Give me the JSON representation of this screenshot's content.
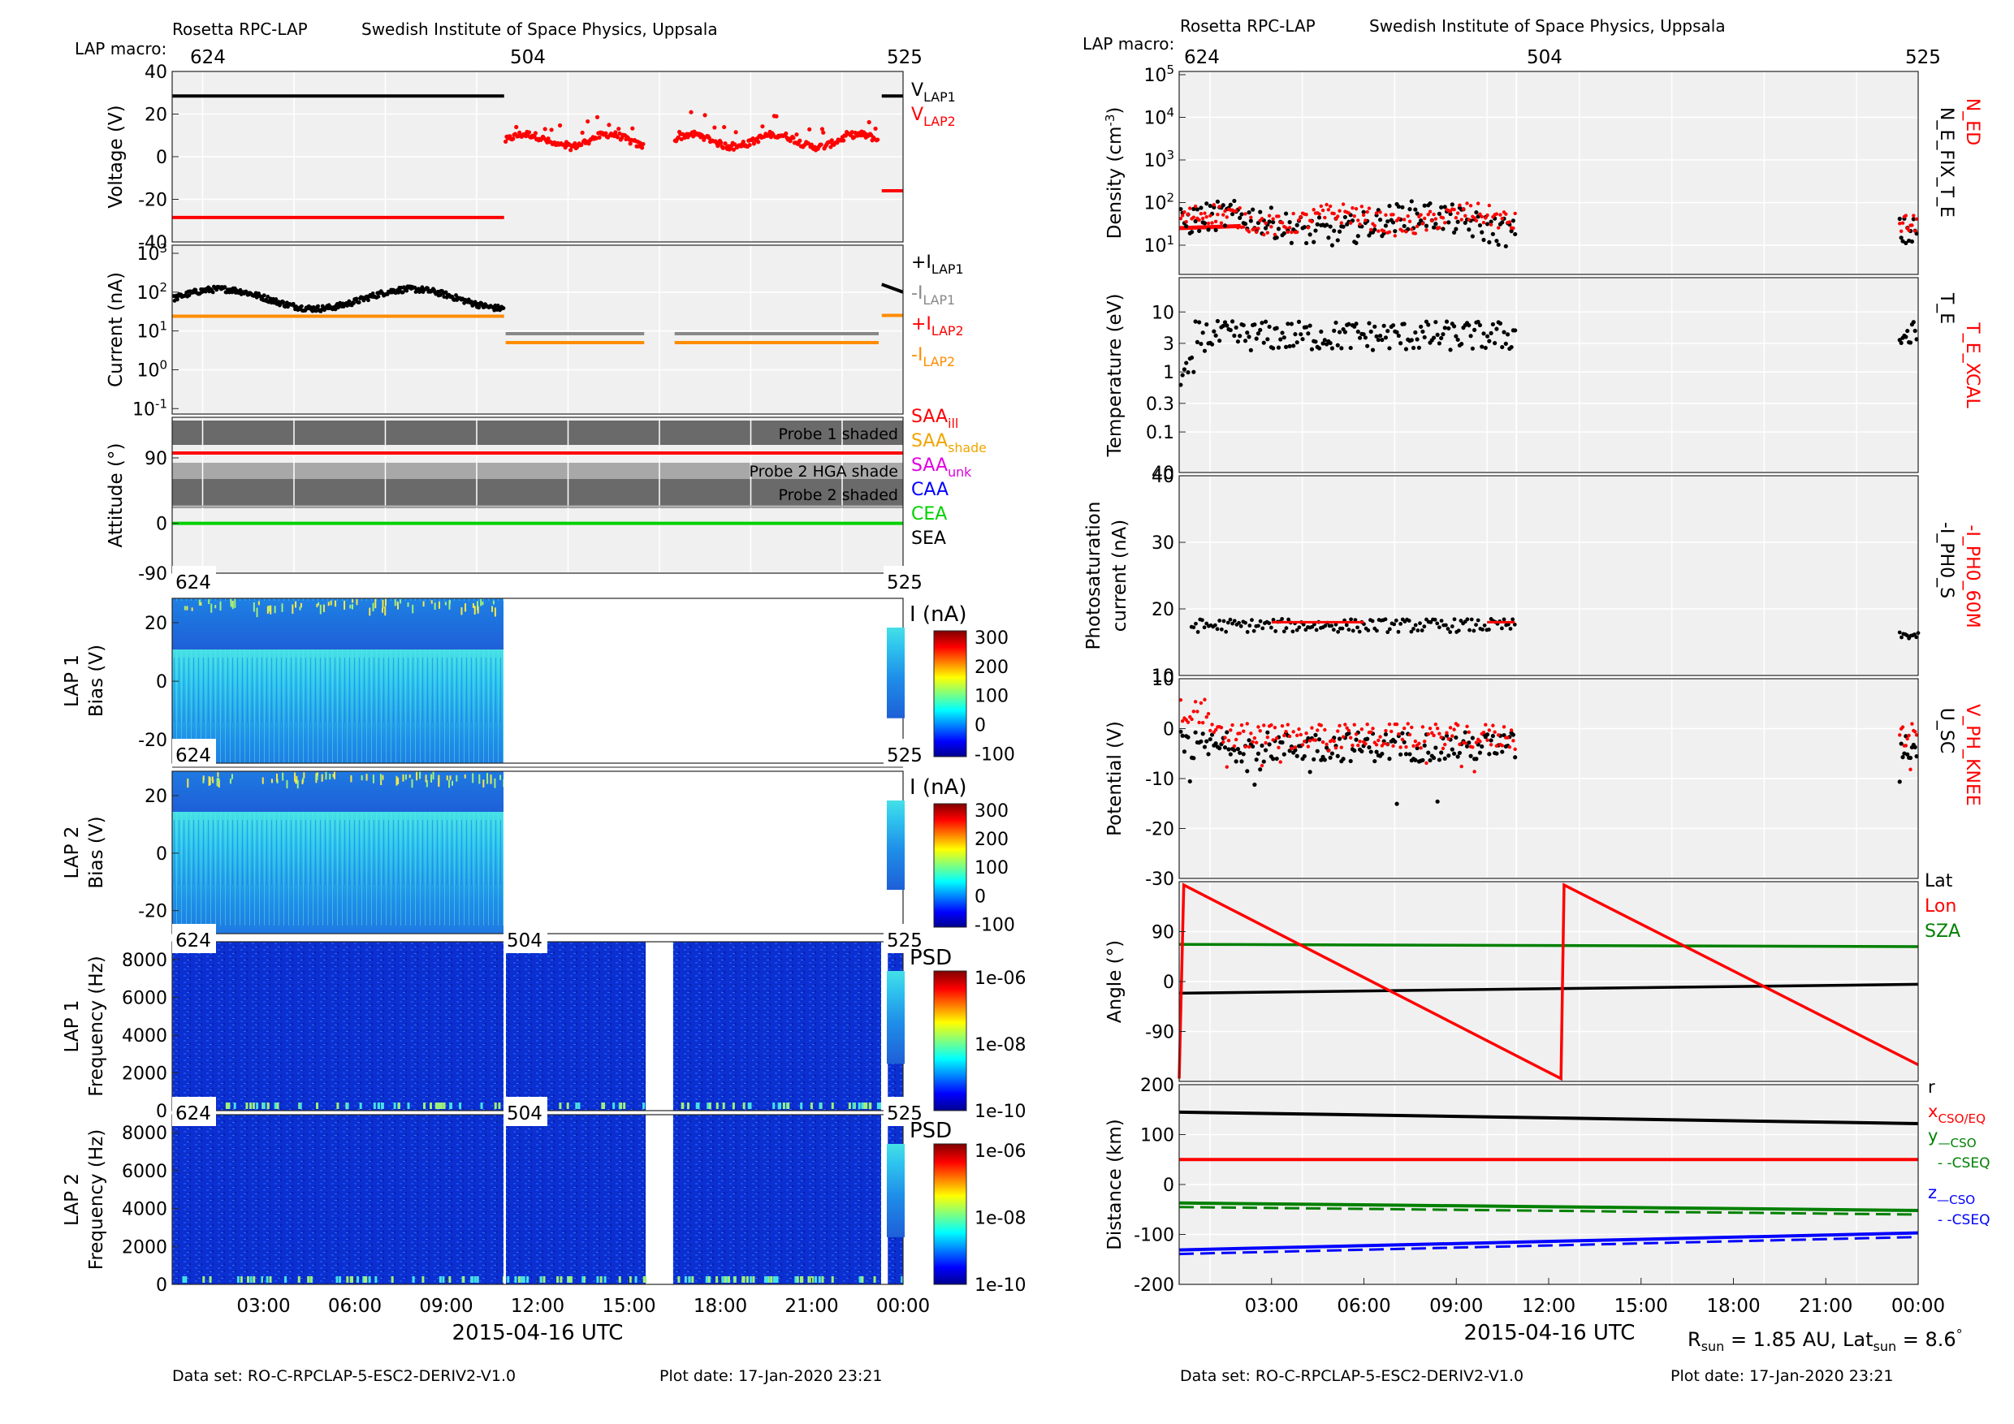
{
  "header": {
    "left_mission": "Rosetta RPC-LAP",
    "left_institute": "Swedish Institute of Space Physics, Uppsala",
    "right_mission": "Rosetta RPC-LAP",
    "right_institute": "Swedish Institute of Space Physics, Uppsala",
    "macro_label": "LAP macro:",
    "macros": [
      "624",
      "504",
      "525"
    ]
  },
  "footer": {
    "left_dataset": "Data set: RO-C-RPCLAP-5-ESC2-DERIV2-V1.0",
    "left_plotdate": "Plot date: 17-Jan-2020 23:21",
    "right_dataset": "Data set: RO-C-RPCLAP-5-ESC2-DERIV2-V1.0",
    "right_plotdate": "Plot date: 17-Jan-2020 23:21",
    "rsun_label": "R",
    "rsun_sub": "sun",
    "rsun_value": " = 1.85 AU, Lat",
    "latsun_sub": "sun",
    "latsun_value": " = 8.6",
    "degree": "°"
  },
  "time_axis": {
    "xlabel": "2015-04-16 UTC",
    "ticks": [
      "03:00",
      "06:00",
      "09:00",
      "12:00",
      "15:00",
      "18:00",
      "21:00",
      "00:00"
    ],
    "tick_hours": [
      3,
      6,
      9,
      12,
      15,
      18,
      21,
      24
    ]
  },
  "chart_data": [
    {
      "type": "scatter",
      "id": "voltage",
      "ylabel": "Voltage (V)",
      "ylim": [
        -40,
        40
      ],
      "yticks": [
        "40",
        "20",
        "0",
        "-20",
        "-40"
      ],
      "legend": [
        {
          "label": "V",
          "sub": "LAP1",
          "color": "#000000"
        },
        {
          "label": "V",
          "sub": "LAP2",
          "color": "#ff0000"
        }
      ],
      "series": [
        {
          "name": "V_LAP1",
          "color": "#000000",
          "segments": [
            {
              "x": [
                0,
                10.9
              ],
              "y": 28.5
            },
            {
              "x": [
                23.3,
                24
              ],
              "y": 28.5
            }
          ]
        },
        {
          "name": "V_LAP2",
          "color": "#ff0000",
          "segments": [
            {
              "x": [
                0,
                10.9
              ],
              "y": -28.5
            },
            {
              "x": [
                23.3,
                24
              ],
              "y": -16
            }
          ]
        }
      ]
    },
    {
      "type": "scatter",
      "id": "current",
      "ylabel": "Current (nA)",
      "yscale": "log",
      "yticks": [
        "10^3",
        "10^2",
        "10^1",
        "10^0",
        "10^-1"
      ],
      "legend": [
        {
          "label": "+I",
          "sub": "LAP1",
          "color": "#000000"
        },
        {
          "label": "-I",
          "sub": "LAP1",
          "color": "#888888"
        },
        {
          "label": "+I",
          "sub": "LAP2",
          "color": "#ff0000"
        },
        {
          "label": "-I",
          "sub": "LAP2",
          "color": "#ff8c00"
        }
      ]
    },
    {
      "type": "area",
      "id": "attitude",
      "ylabel": "Attitude (°)",
      "yticks": [
        "90",
        "0",
        "-90"
      ],
      "bands": [
        "Probe 1 shaded",
        "Probe 2 HGA shade",
        "Probe 2 shaded"
      ],
      "legend": [
        {
          "label": "SAA",
          "sub": "ill",
          "color": "#ff0000"
        },
        {
          "label": "SAA",
          "sub": "shade",
          "color": "#f0a500"
        },
        {
          "label": "SAA",
          "sub": "unk",
          "color": "#e000e0"
        },
        {
          "label": "CAA",
          "sub": "",
          "color": "#0000ff"
        },
        {
          "label": "CEA",
          "sub": "",
          "color": "#00d000"
        },
        {
          "label": "SEA",
          "sub": "",
          "color": "#000000"
        }
      ]
    },
    {
      "type": "heatmap",
      "id": "lap1_bias",
      "ylabel": "LAP 1",
      "ylabel2": "Bias (V)",
      "yticks": [
        "20",
        "0",
        "-20"
      ],
      "colorbar_label": "I (nA)",
      "colorbar_ticks": [
        "300",
        "200",
        "100",
        "0",
        "-100"
      ],
      "macro_tags": [
        "624",
        "525"
      ]
    },
    {
      "type": "heatmap",
      "id": "lap2_bias",
      "ylabel": "LAP 2",
      "ylabel2": "Bias (V)",
      "yticks": [
        "20",
        "0",
        "-20"
      ],
      "colorbar_label": "I (nA)",
      "colorbar_ticks": [
        "300",
        "200",
        "100",
        "0",
        "-100"
      ],
      "macro_tags": [
        "624",
        "525"
      ]
    },
    {
      "type": "heatmap",
      "id": "lap1_freq",
      "ylabel": "LAP 1",
      "ylabel2": "Frequency (Hz)",
      "yticks": [
        "8000",
        "6000",
        "4000",
        "2000",
        "0"
      ],
      "colorbar_label": "PSD",
      "colorbar_ticks": [
        "1e-06",
        "1e-08",
        "1e-10"
      ],
      "macro_tags": [
        "624",
        "504",
        "525"
      ]
    },
    {
      "type": "heatmap",
      "id": "lap2_freq",
      "ylabel": "LAP 2",
      "ylabel2": "Frequency (Hz)",
      "yticks": [
        "8000",
        "6000",
        "4000",
        "2000",
        "0"
      ],
      "colorbar_label": "PSD",
      "colorbar_ticks": [
        "1e-06",
        "1e-08",
        "1e-10"
      ],
      "macro_tags": [
        "624",
        "504",
        "525"
      ]
    },
    {
      "type": "scatter",
      "id": "density",
      "ylabel": "Density (cm",
      "ylabel_sup": "-3",
      "ylabel_end": ")",
      "yscale": "log",
      "yticks": [
        "10^5",
        "10^4",
        "10^3",
        "10^2",
        "10^1"
      ],
      "right_labels": [
        {
          "text": "N_ED",
          "color": "#ff0000"
        },
        {
          "text": "N_E_FIX_T_E",
          "color": "#000000"
        }
      ]
    },
    {
      "type": "scatter",
      "id": "temperature",
      "ylabel": "Temperature (eV)",
      "yscale": "log",
      "yticks": [
        "10",
        "3",
        "1",
        "0.3",
        "0.1"
      ],
      "right_labels": [
        {
          "text": "T_E_XCAL",
          "color": "#ff0000"
        },
        {
          "text": "T_E",
          "color": "#000000"
        }
      ]
    },
    {
      "type": "scatter",
      "id": "photosat",
      "ylabel": "Photosaturation",
      "ylabel2": "current (nA)",
      "ylim": [
        10,
        40
      ],
      "yticks": [
        "40",
        "30",
        "20",
        "10"
      ],
      "right_labels": [
        {
          "text": "-I_PH0_60M",
          "color": "#ff0000"
        },
        {
          "text": "-I_PH0_S",
          "color": "#000000"
        }
      ]
    },
    {
      "type": "scatter",
      "id": "potential",
      "ylabel": "Potential (V)",
      "ylim": [
        -30,
        10
      ],
      "yticks": [
        "10",
        "0",
        "-10",
        "-20",
        "-30"
      ],
      "right_labels": [
        {
          "text": "V_PH_KNEE",
          "color": "#ff0000"
        },
        {
          "text": "U_SC",
          "color": "#000000"
        }
      ]
    },
    {
      "type": "line",
      "id": "angle",
      "ylabel": "Angle (°)",
      "ylim": [
        -180,
        180
      ],
      "yticks": [
        "90",
        "0",
        "-90"
      ],
      "legend": [
        {
          "label": "Lat",
          "sub": "",
          "color": "#000000"
        },
        {
          "label": "Lon",
          "sub": "",
          "color": "#ff0000"
        },
        {
          "label": "SZA",
          "sub": "",
          "color": "#008000"
        }
      ],
      "series": [
        {
          "name": "Lat",
          "color": "#000000",
          "x": [
            0,
            24
          ],
          "y": [
            -21,
            -5
          ]
        },
        {
          "name": "SZA",
          "color": "#008000",
          "x": [
            0,
            24
          ],
          "y": [
            67,
            63
          ]
        },
        {
          "name": "Lon",
          "color": "#ff0000",
          "x": [
            0,
            0.15,
            12.4,
            12.5,
            24
          ],
          "y": [
            -175,
            174,
            -175,
            174,
            -150
          ]
        }
      ]
    },
    {
      "type": "line",
      "id": "distance",
      "ylabel": "Distance (km)",
      "ylim": [
        -200,
        200
      ],
      "yticks": [
        "200",
        "100",
        "0",
        "-100",
        "-200"
      ],
      "legend": [
        {
          "label": "r",
          "sub": "",
          "color": "#000000"
        },
        {
          "label": "x",
          "sub": "CSO/EQ",
          "color": "#ff0000"
        },
        {
          "label": "y",
          "sub": "—CSO",
          "color": "#008000"
        },
        {
          "label": "- -CSEQ",
          "sub": "",
          "color": "#008000"
        },
        {
          "label": "z",
          "sub": "—CSO",
          "color": "#0000ff"
        },
        {
          "label": "- -CSEQ",
          "sub": "",
          "color": "#0000ff"
        }
      ],
      "series": [
        {
          "name": "r",
          "color": "#000000",
          "x": [
            0,
            24
          ],
          "y": [
            145,
            122
          ]
        },
        {
          "name": "x",
          "color": "#ff0000",
          "x": [
            0,
            24
          ],
          "y": [
            50,
            50
          ]
        },
        {
          "name": "y",
          "color": "#008000",
          "x": [
            0,
            24
          ],
          "y": [
            -37,
            -52
          ]
        },
        {
          "name": "z",
          "color": "#0000ff",
          "x": [
            0,
            24
          ],
          "y": [
            -131,
            -97
          ]
        }
      ]
    }
  ]
}
